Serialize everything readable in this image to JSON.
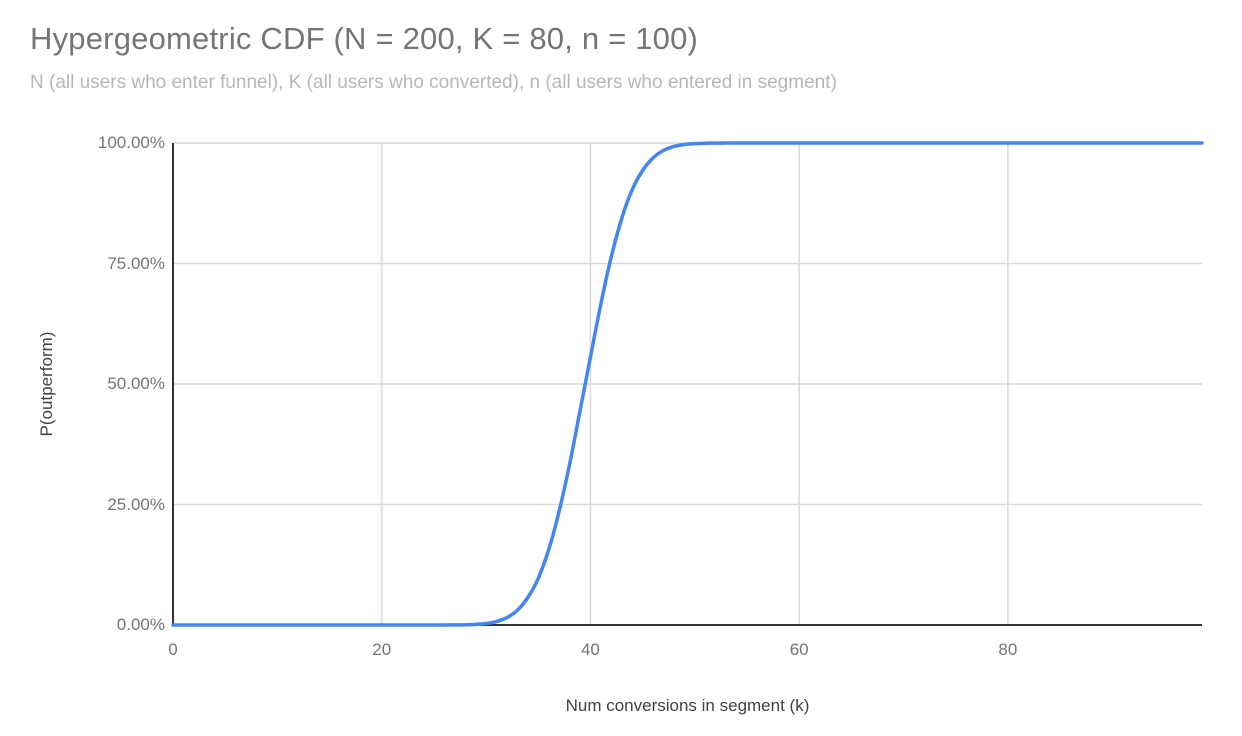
{
  "header": {
    "title": "Hypergeometric CDF (N = 200, K = 80, n = 100)",
    "subtitle": "N (all users who enter funnel), K (all users who converted), n (all users who entered in segment)"
  },
  "colors": {
    "background": "#ffffff",
    "line": "#4285f4",
    "grid": "#d9d9d9",
    "axis": "#333333",
    "title": "#757575",
    "subtitle": "#b7b7b7",
    "tick_label": "#757575",
    "axis_title": "#424242"
  },
  "chart_data": {
    "type": "line",
    "title": "Hypergeometric CDF (N = 200, K = 80, n = 100)",
    "subtitle": "N (all users who enter funnel), K (all users who converted), n (all users who entered in segment)",
    "xlabel": "Num conversions in segment (k)",
    "ylabel": "P(outperform)",
    "xlim": [
      0,
      98.6
    ],
    "ylim_percent": [
      0,
      100
    ],
    "x_ticks": [
      0,
      20,
      40,
      60,
      80
    ],
    "y_ticks": [
      0,
      25,
      50,
      75,
      100
    ],
    "y_tick_labels": [
      "0.00%",
      "25.00%",
      "50.00%",
      "75.00%",
      "100.00%"
    ],
    "grid": true,
    "legend": "none",
    "series": [
      {
        "name": "P(outperform)",
        "x": [
          0,
          5,
          10,
          15,
          20,
          22,
          24,
          25,
          26,
          27,
          28,
          29,
          30,
          31,
          32,
          33,
          34,
          35,
          36,
          37,
          38,
          39,
          40,
          41,
          42,
          43,
          44,
          45,
          46,
          47,
          48,
          49,
          50,
          51,
          52,
          53,
          54,
          55,
          60,
          65,
          70,
          75,
          80,
          85,
          90,
          95,
          98.6
        ],
        "y_percent": [
          0,
          0,
          0,
          0,
          0,
          0,
          0,
          0,
          0.01,
          0.02,
          0.05,
          0.13,
          0.31,
          0.71,
          1.54,
          3.07,
          5.71,
          9.68,
          15.62,
          23.58,
          33.36,
          44.43,
          55.57,
          66.64,
          76.42,
          84.38,
          90.32,
          94.29,
          96.93,
          98.46,
          99.29,
          99.69,
          99.87,
          99.95,
          99.98,
          99.99,
          100,
          100,
          100,
          100,
          100,
          100,
          100,
          100,
          100,
          100,
          100
        ]
      }
    ]
  }
}
